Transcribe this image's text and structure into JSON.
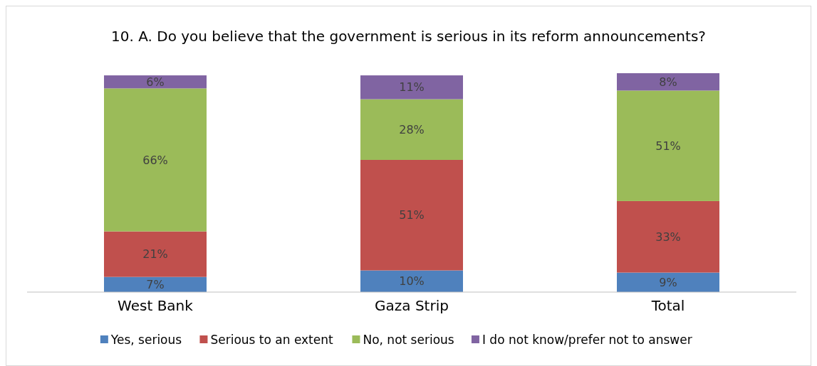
{
  "chart_data": {
    "type": "bar",
    "stacked": true,
    "title": "10. A. Do you believe that the government is serious in its reform announcements?",
    "categories": [
      "West Bank",
      "Gaza Strip",
      "Total"
    ],
    "legend": "bottom",
    "series": [
      {
        "name": "Yes, serious",
        "color": "#4f81bd",
        "values": [
          7,
          10,
          9
        ],
        "value_labels": [
          "7%",
          "10%",
          "9%"
        ]
      },
      {
        "name": "Serious to an extent",
        "color": "#c0504d",
        "values": [
          21,
          51,
          33
        ],
        "value_labels": [
          "21%",
          "51%",
          "33%"
        ]
      },
      {
        "name": "No, not serious",
        "color": "#9bbb59",
        "values": [
          66,
          28,
          51
        ],
        "value_labels": [
          "66%",
          "28%",
          "51%"
        ]
      },
      {
        "name": "I do not know/prefer not to answer",
        "color": "#8064a2",
        "values": [
          6,
          11,
          8
        ],
        "value_labels": [
          "6%",
          "11%",
          "8%"
        ]
      }
    ]
  }
}
